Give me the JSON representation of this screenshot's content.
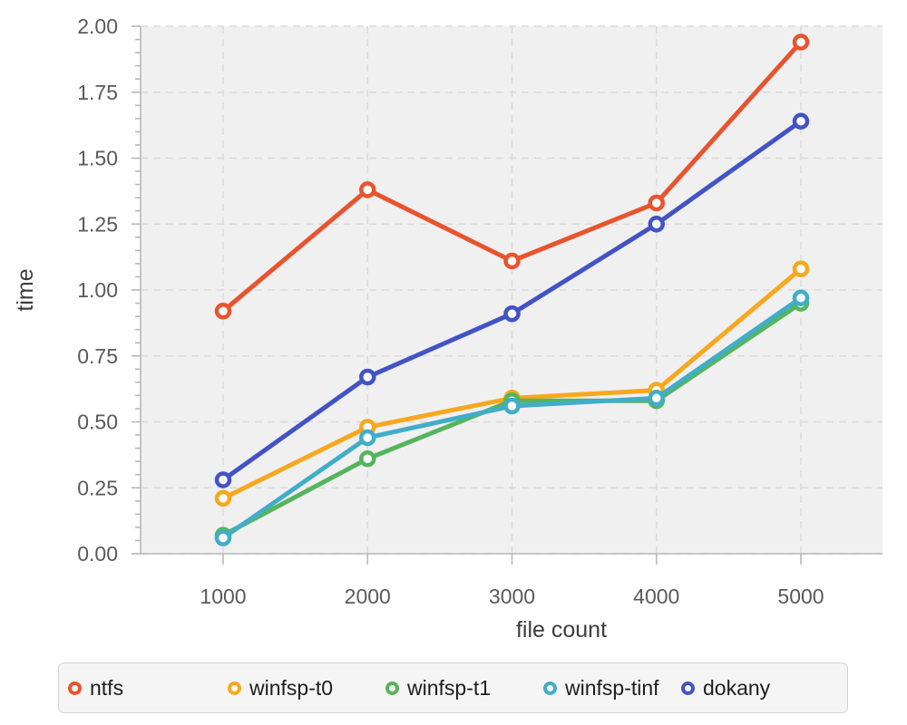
{
  "chart_data": {
    "type": "line",
    "title": "",
    "xlabel": "file count",
    "ylabel": "time",
    "x": [
      1000,
      2000,
      3000,
      4000,
      5000
    ],
    "xlim": [
      1000,
      5000
    ],
    "ylim": [
      0,
      2.0
    ],
    "ytick_major_step": 0.25,
    "ytick_minor_step": 0.05,
    "ytick_labels": [
      "0.00",
      "0.25",
      "0.50",
      "0.75",
      "1.00",
      "1.25",
      "1.50",
      "1.75",
      "2.00"
    ],
    "xtick_labels": [
      "1000",
      "2000",
      "3000",
      "4000",
      "5000"
    ],
    "grid": "dashed-major",
    "legend_position": "bottom",
    "marker_style": "open-circle",
    "series": [
      {
        "name": "ntfs",
        "color": "#e8542e",
        "values": [
          0.92,
          1.38,
          1.11,
          1.33,
          1.94
        ]
      },
      {
        "name": "winfsp-t0",
        "color": "#f7a81e",
        "values": [
          0.21,
          0.48,
          0.59,
          0.62,
          1.08
        ]
      },
      {
        "name": "winfsp-t1",
        "color": "#56b45c",
        "values": [
          0.07,
          0.36,
          0.58,
          0.58,
          0.95
        ]
      },
      {
        "name": "winfsp-tinf",
        "color": "#41adc8",
        "values": [
          0.06,
          0.44,
          0.56,
          0.59,
          0.97
        ]
      },
      {
        "name": "dokany",
        "color": "#4253c6",
        "values": [
          0.28,
          0.67,
          0.91,
          1.25,
          1.64
        ]
      }
    ],
    "colors": {
      "panel_bg": "#f0f0f1",
      "gridline": "#dadada",
      "axis_line": "#b8b8b8",
      "tick_label": "#5a5a5a",
      "axis_title": "#3c3c3c"
    }
  }
}
